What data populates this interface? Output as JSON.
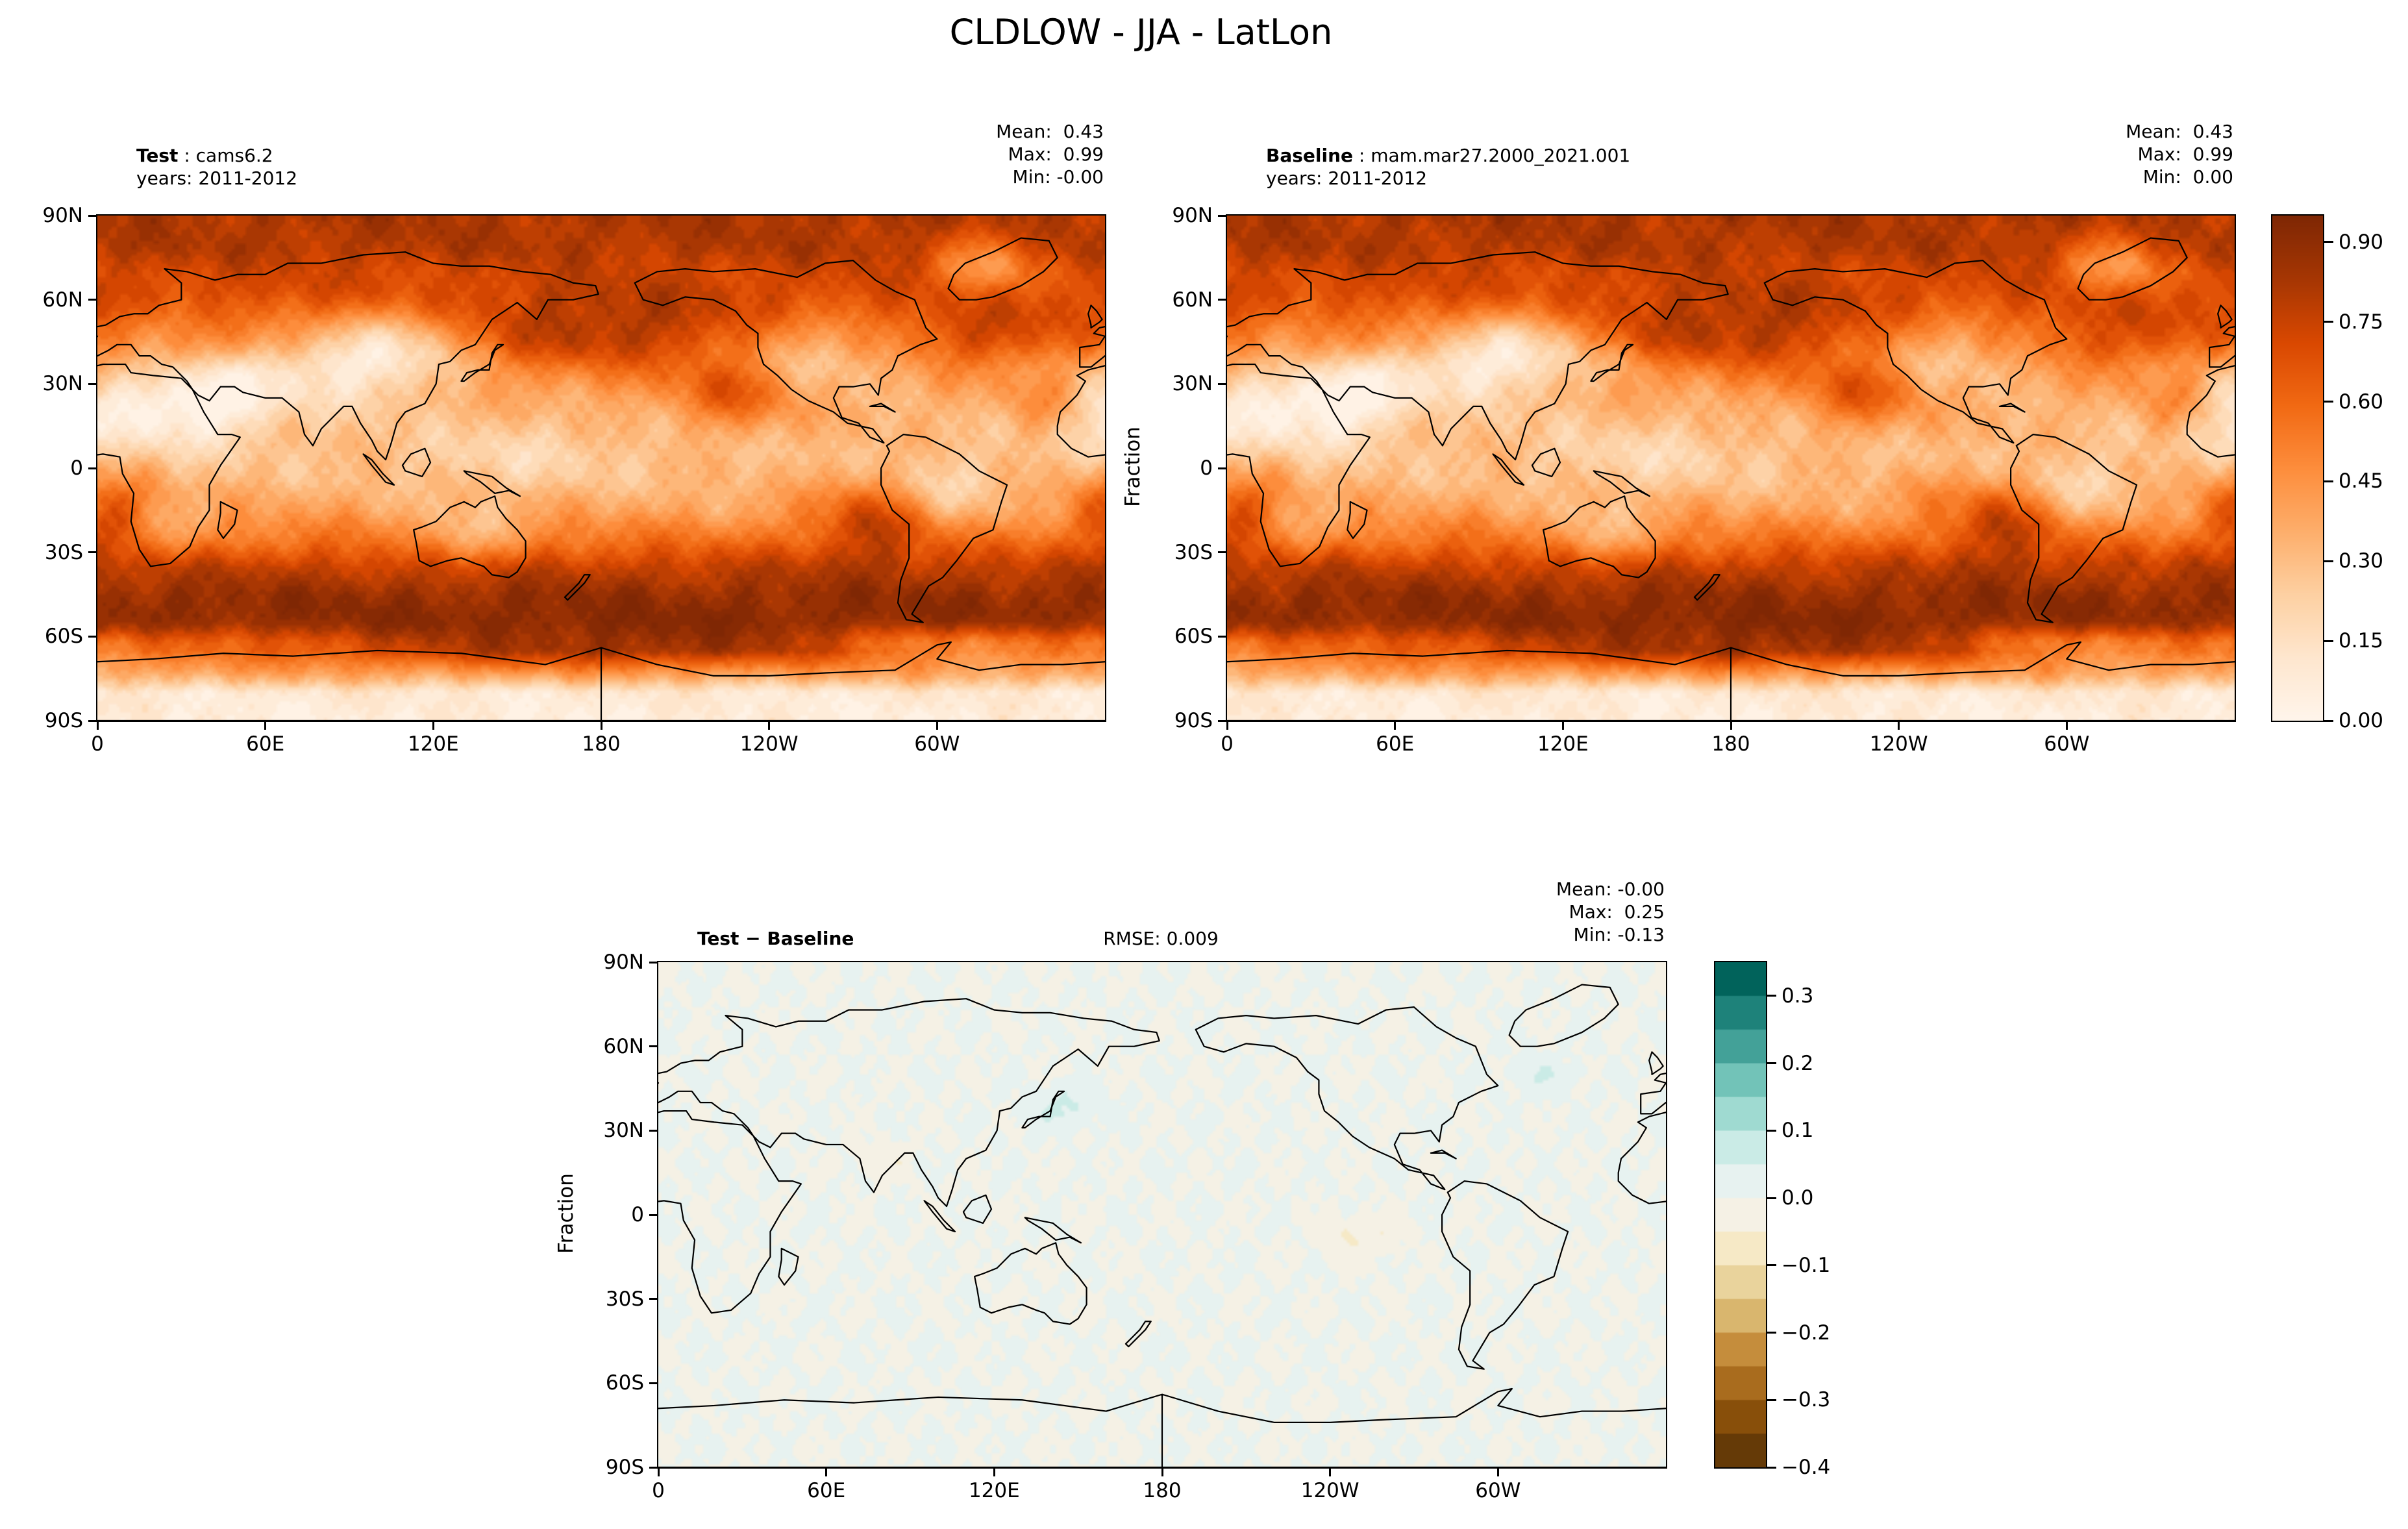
{
  "title": "CLDLOW - JJA - LatLon",
  "chart_data": {
    "type": "heatmap",
    "variable": "CLDLOW",
    "season": "JJA",
    "projection": "LatLon",
    "lon_range_deg": [
      0,
      360
    ],
    "lat_range_deg": [
      -90,
      90
    ],
    "x_tick_labels": [
      "0",
      "60E",
      "120E",
      "180",
      "120W",
      "60W"
    ],
    "y_tick_labels": [
      "90N",
      "60N",
      "30N",
      "0",
      "30S",
      "60S",
      "90S"
    ],
    "panels": [
      {
        "name": "test",
        "title_bold": "Test",
        "title_rest": " : cams6.2",
        "subtitle": "years: 2011-2012",
        "stats": [
          "Mean:  0.43",
          "Max:  0.99",
          "Min: -0.00"
        ]
      },
      {
        "name": "baseline",
        "title_bold": "Baseline",
        "title_rest": " : mam.mar27.2000_2021.001",
        "subtitle": "years: 2011-2012",
        "ylabel": "Fraction",
        "stats": [
          "Mean:  0.43",
          "Max:  0.99",
          "Min:  0.00"
        ]
      },
      {
        "name": "difference",
        "title_bold": "Test − Baseline",
        "rmse": "RMSE: 0.009",
        "ylabel": "Fraction",
        "stats": [
          "Mean: -0.00",
          "Max:  0.25",
          "Min: -0.13"
        ]
      }
    ],
    "colorbars": [
      {
        "name": "fraction",
        "colormap": "Oranges",
        "vmin": 0.0,
        "vmax": 0.95,
        "tick_labels": [
          "0.90",
          "0.75",
          "0.60",
          "0.45",
          "0.30",
          "0.15",
          "0.00"
        ],
        "tick_values": [
          0.9,
          0.75,
          0.6,
          0.45,
          0.3,
          0.15,
          0.0
        ]
      },
      {
        "name": "difference",
        "colormap": "BrBG",
        "vmin": -0.4,
        "vmax": 0.35,
        "tick_labels": [
          "0.3",
          "0.2",
          "0.1",
          "0.0",
          "−0.1",
          "−0.2",
          "−0.3",
          "−0.4"
        ],
        "tick_values": [
          0.3,
          0.2,
          0.1,
          0.0,
          -0.1,
          -0.2,
          -0.3,
          -0.4
        ]
      }
    ]
  }
}
